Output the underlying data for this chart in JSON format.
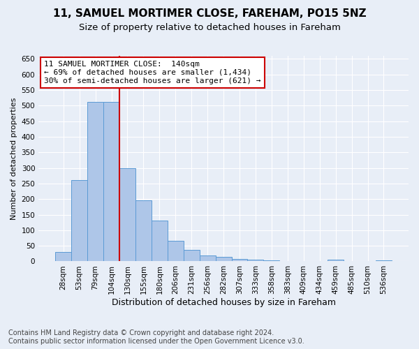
{
  "title1": "11, SAMUEL MORTIMER CLOSE, FAREHAM, PO15 5NZ",
  "title2": "Size of property relative to detached houses in Fareham",
  "xlabel": "Distribution of detached houses by size in Fareham",
  "ylabel": "Number of detached properties",
  "footnote1": "Contains HM Land Registry data © Crown copyright and database right 2024.",
  "footnote2": "Contains public sector information licensed under the Open Government Licence v3.0.",
  "categories": [
    "28sqm",
    "53sqm",
    "79sqm",
    "104sqm",
    "130sqm",
    "155sqm",
    "180sqm",
    "206sqm",
    "231sqm",
    "256sqm",
    "282sqm",
    "307sqm",
    "333sqm",
    "358sqm",
    "383sqm",
    "409sqm",
    "434sqm",
    "459sqm",
    "485sqm",
    "510sqm",
    "536sqm"
  ],
  "values": [
    30,
    262,
    512,
    511,
    300,
    197,
    130,
    65,
    38,
    20,
    14,
    8,
    6,
    4,
    2,
    2,
    0,
    5,
    1,
    0,
    4
  ],
  "bar_color": "#aec6e8",
  "bar_edge_color": "#5b9bd5",
  "property_line_index": 4,
  "annotation_line1": "11 SAMUEL MORTIMER CLOSE:  140sqm",
  "annotation_line2": "← 69% of detached houses are smaller (1,434)",
  "annotation_line3": "30% of semi-detached houses are larger (621) →",
  "annotation_box_color": "#ffffff",
  "annotation_box_edge": "#cc0000",
  "vline_color": "#cc0000",
  "ylim": [
    0,
    660
  ],
  "yticks": [
    0,
    50,
    100,
    150,
    200,
    250,
    300,
    350,
    400,
    450,
    500,
    550,
    600,
    650
  ],
  "background_color": "#e8eef7",
  "grid_color": "#ffffff",
  "title1_fontsize": 11,
  "title2_fontsize": 9.5,
  "xlabel_fontsize": 9,
  "ylabel_fontsize": 8,
  "tick_fontsize": 7.5,
  "annotation_fontsize": 8,
  "footnote_fontsize": 7
}
